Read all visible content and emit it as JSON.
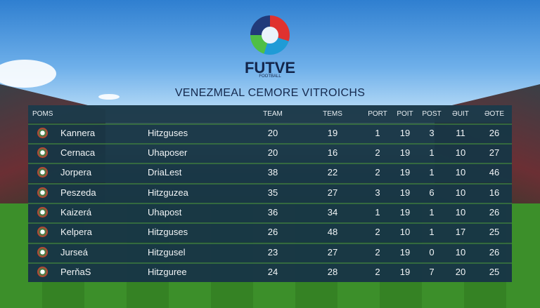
{
  "header": {
    "brand": "FUTVE",
    "subtitle": "FOOTBALL",
    "title": "VENEZMEAL CEMORE VITROICHS"
  },
  "table": {
    "columns": [
      "POMS",
      "TEAM",
      "TEMS",
      "PORT",
      "POIT",
      "POST",
      "ƏUIT",
      "ƏOTE"
    ],
    "rows": [
      {
        "team": "Kannera",
        "club": "Hitzguses",
        "stats": [
          20,
          19,
          1,
          19,
          3,
          11,
          26
        ]
      },
      {
        "team": "Cernaca",
        "club": "Uhaposer",
        "stats": [
          20,
          16,
          2,
          19,
          1,
          10,
          27
        ]
      },
      {
        "team": "Jorpera",
        "club": "DriaLest",
        "stats": [
          38,
          22,
          2,
          19,
          1,
          10,
          46
        ]
      },
      {
        "team": "Peszeda",
        "club": "Hitzguzea",
        "stats": [
          35,
          27,
          3,
          19,
          6,
          10,
          16
        ]
      },
      {
        "team": "Kaizerá",
        "club": "Uhapost",
        "stats": [
          36,
          34,
          1,
          19,
          1,
          10,
          26
        ]
      },
      {
        "team": "Kelpera",
        "club": "Hitzguses",
        "stats": [
          26,
          48,
          2,
          10,
          1,
          17,
          25
        ]
      },
      {
        "team": "Jurseá",
        "club": "Hitzgusel",
        "stats": [
          23,
          27,
          2,
          19,
          0,
          10,
          26
        ]
      },
      {
        "team": "PerňaS",
        "club": "Hitzguree",
        "stats": [
          24,
          28,
          2,
          19,
          7,
          20,
          25
        ]
      }
    ]
  }
}
